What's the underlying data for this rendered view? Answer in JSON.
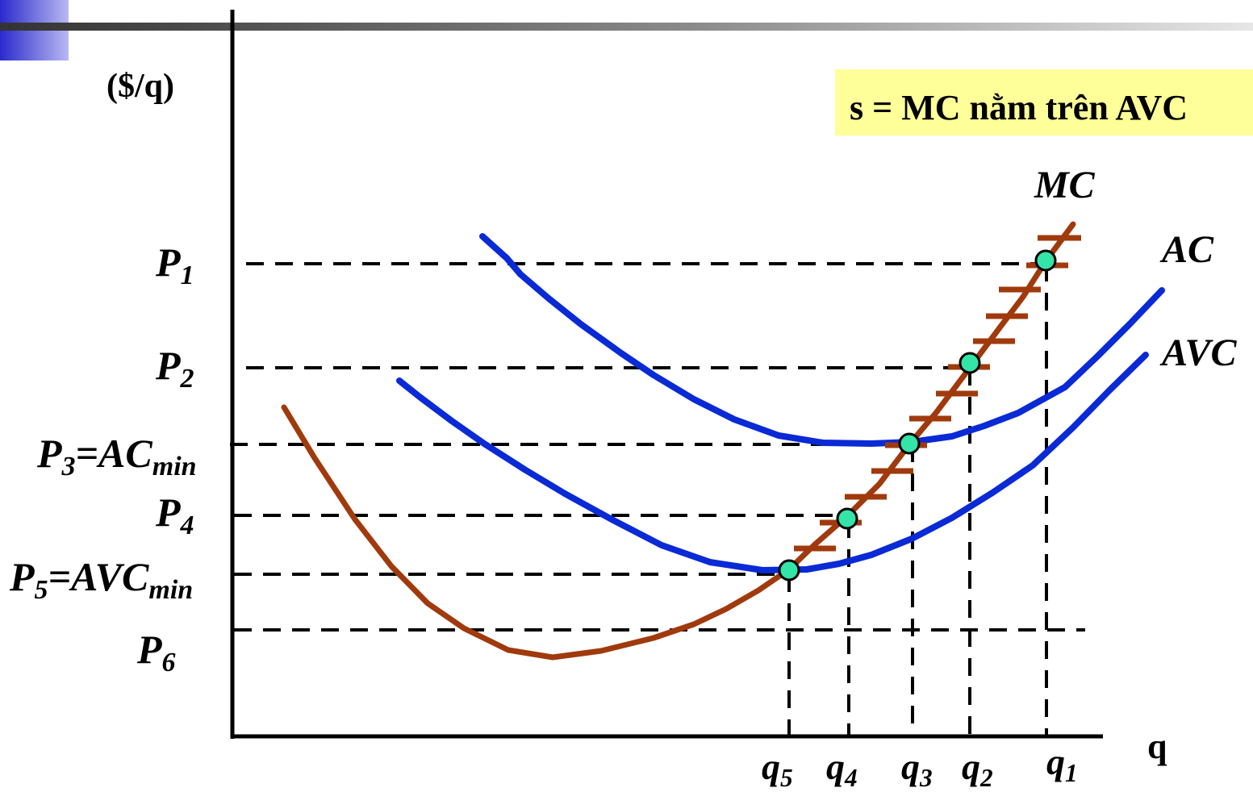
{
  "ylabel": "($/q)",
  "xlabel": "q",
  "note": "s = MC nằm trên AVC",
  "curves": {
    "mc": "MC",
    "ac": "AC",
    "avc": "AVC"
  },
  "price_levels": [
    {
      "name": "P",
      "sub": "1",
      "suffix": "",
      "suffix_sub": ""
    },
    {
      "name": "P",
      "sub": "2",
      "suffix": "",
      "suffix_sub": ""
    },
    {
      "name": "P",
      "sub": "3",
      "suffix": "=AC",
      "suffix_sub": "min"
    },
    {
      "name": "P",
      "sub": "4",
      "suffix": "",
      "suffix_sub": ""
    },
    {
      "name": "P",
      "sub": "5",
      "suffix": "=AVC",
      "suffix_sub": "min"
    },
    {
      "name": "P",
      "sub": "6",
      "suffix": "",
      "suffix_sub": ""
    }
  ],
  "quantity_levels": [
    {
      "name": "q",
      "sub": "5"
    },
    {
      "name": "q",
      "sub": "4"
    },
    {
      "name": "q",
      "sub": "3"
    },
    {
      "name": "q",
      "sub": "2"
    },
    {
      "name": "q",
      "sub": "1"
    }
  ],
  "colors": {
    "mc": "#a03a0c",
    "ac": "#0a2ad6",
    "avc": "#0a2ad6",
    "point": "#33e6a8",
    "note_bg": "#ffff99"
  }
}
